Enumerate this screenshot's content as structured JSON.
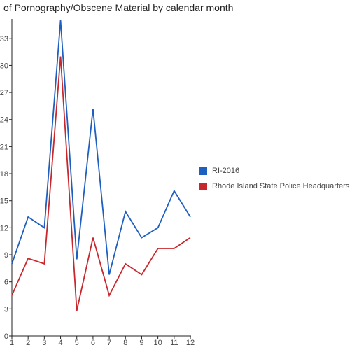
{
  "chart_data": {
    "type": "line",
    "title": "of Pornography/Obscene Material by calendar month",
    "xlabel": "",
    "ylabel": "",
    "x": [
      1,
      2,
      3,
      4,
      5,
      6,
      7,
      8,
      9,
      10,
      11,
      12
    ],
    "xlim": [
      1,
      12
    ],
    "ylim": [
      0,
      35
    ],
    "yticks": [
      0,
      3,
      6,
      9,
      12,
      15,
      18,
      21,
      24,
      27,
      30,
      33
    ],
    "grid": false,
    "legend_position": "right",
    "series": [
      {
        "name": "RI-2016",
        "color": "#1f5fbf",
        "values": [
          8,
          13.2,
          12,
          35,
          8.5,
          25.2,
          6.8,
          13.8,
          10.9,
          12,
          16.1,
          13.2
        ]
      },
      {
        "name": "Rhode Island State Police Headquarters",
        "color": "#c8282d",
        "values": [
          4.5,
          8.6,
          8,
          31,
          2.8,
          10.9,
          4.5,
          8,
          6.8,
          9.7,
          9.7,
          10.9
        ]
      }
    ]
  }
}
